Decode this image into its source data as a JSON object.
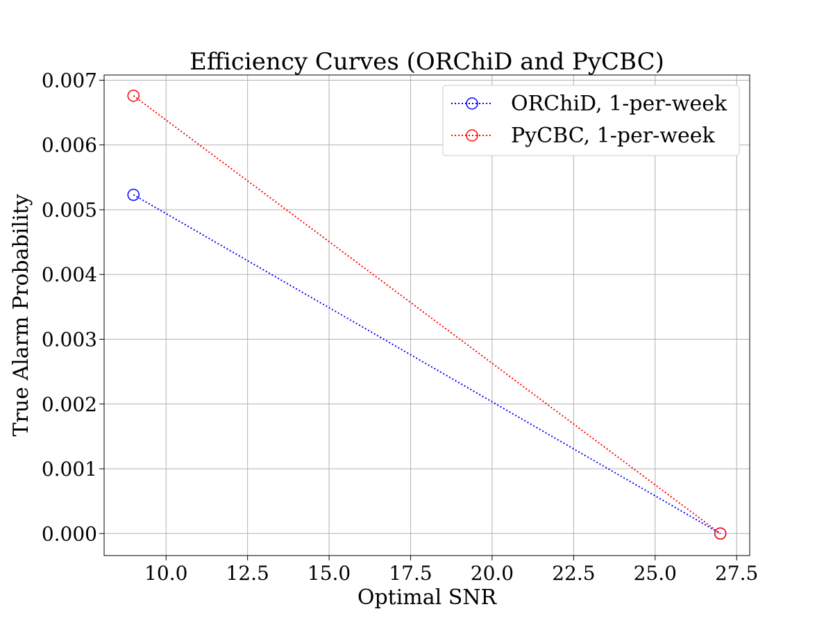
{
  "chart_data": {
    "type": "line",
    "title": "Efficiency Curves (ORChiD and PyCBC)",
    "xlabel": "Optimal SNR",
    "ylabel": "True Alarm Probability",
    "xlim": [
      8.1,
      27.9
    ],
    "ylim": [
      -0.00034,
      0.00708
    ],
    "xticks": [
      10.0,
      12.5,
      15.0,
      17.5,
      20.0,
      22.5,
      25.0,
      27.5
    ],
    "xtick_labels": [
      "10.0",
      "12.5",
      "15.0",
      "17.5",
      "20.0",
      "22.5",
      "25.0",
      "27.5"
    ],
    "yticks": [
      0.0,
      0.001,
      0.002,
      0.003,
      0.004,
      0.005,
      0.006,
      0.007
    ],
    "ytick_labels": [
      "0.000",
      "0.001",
      "0.002",
      "0.003",
      "0.004",
      "0.005",
      "0.006",
      "0.007"
    ],
    "grid": true,
    "legend_position": "top-right",
    "series": [
      {
        "name": "ORChiD, 1-per-week",
        "color": "#0000ff",
        "linestyle": "dotted",
        "marker": "open-circle",
        "x": [
          9,
          27
        ],
        "y": [
          0.00523,
          0.0
        ]
      },
      {
        "name": "PyCBC, 1-per-week",
        "color": "#ff0000",
        "linestyle": "dotted",
        "marker": "open-circle",
        "x": [
          9,
          27
        ],
        "y": [
          0.00676,
          0.0
        ]
      }
    ]
  }
}
